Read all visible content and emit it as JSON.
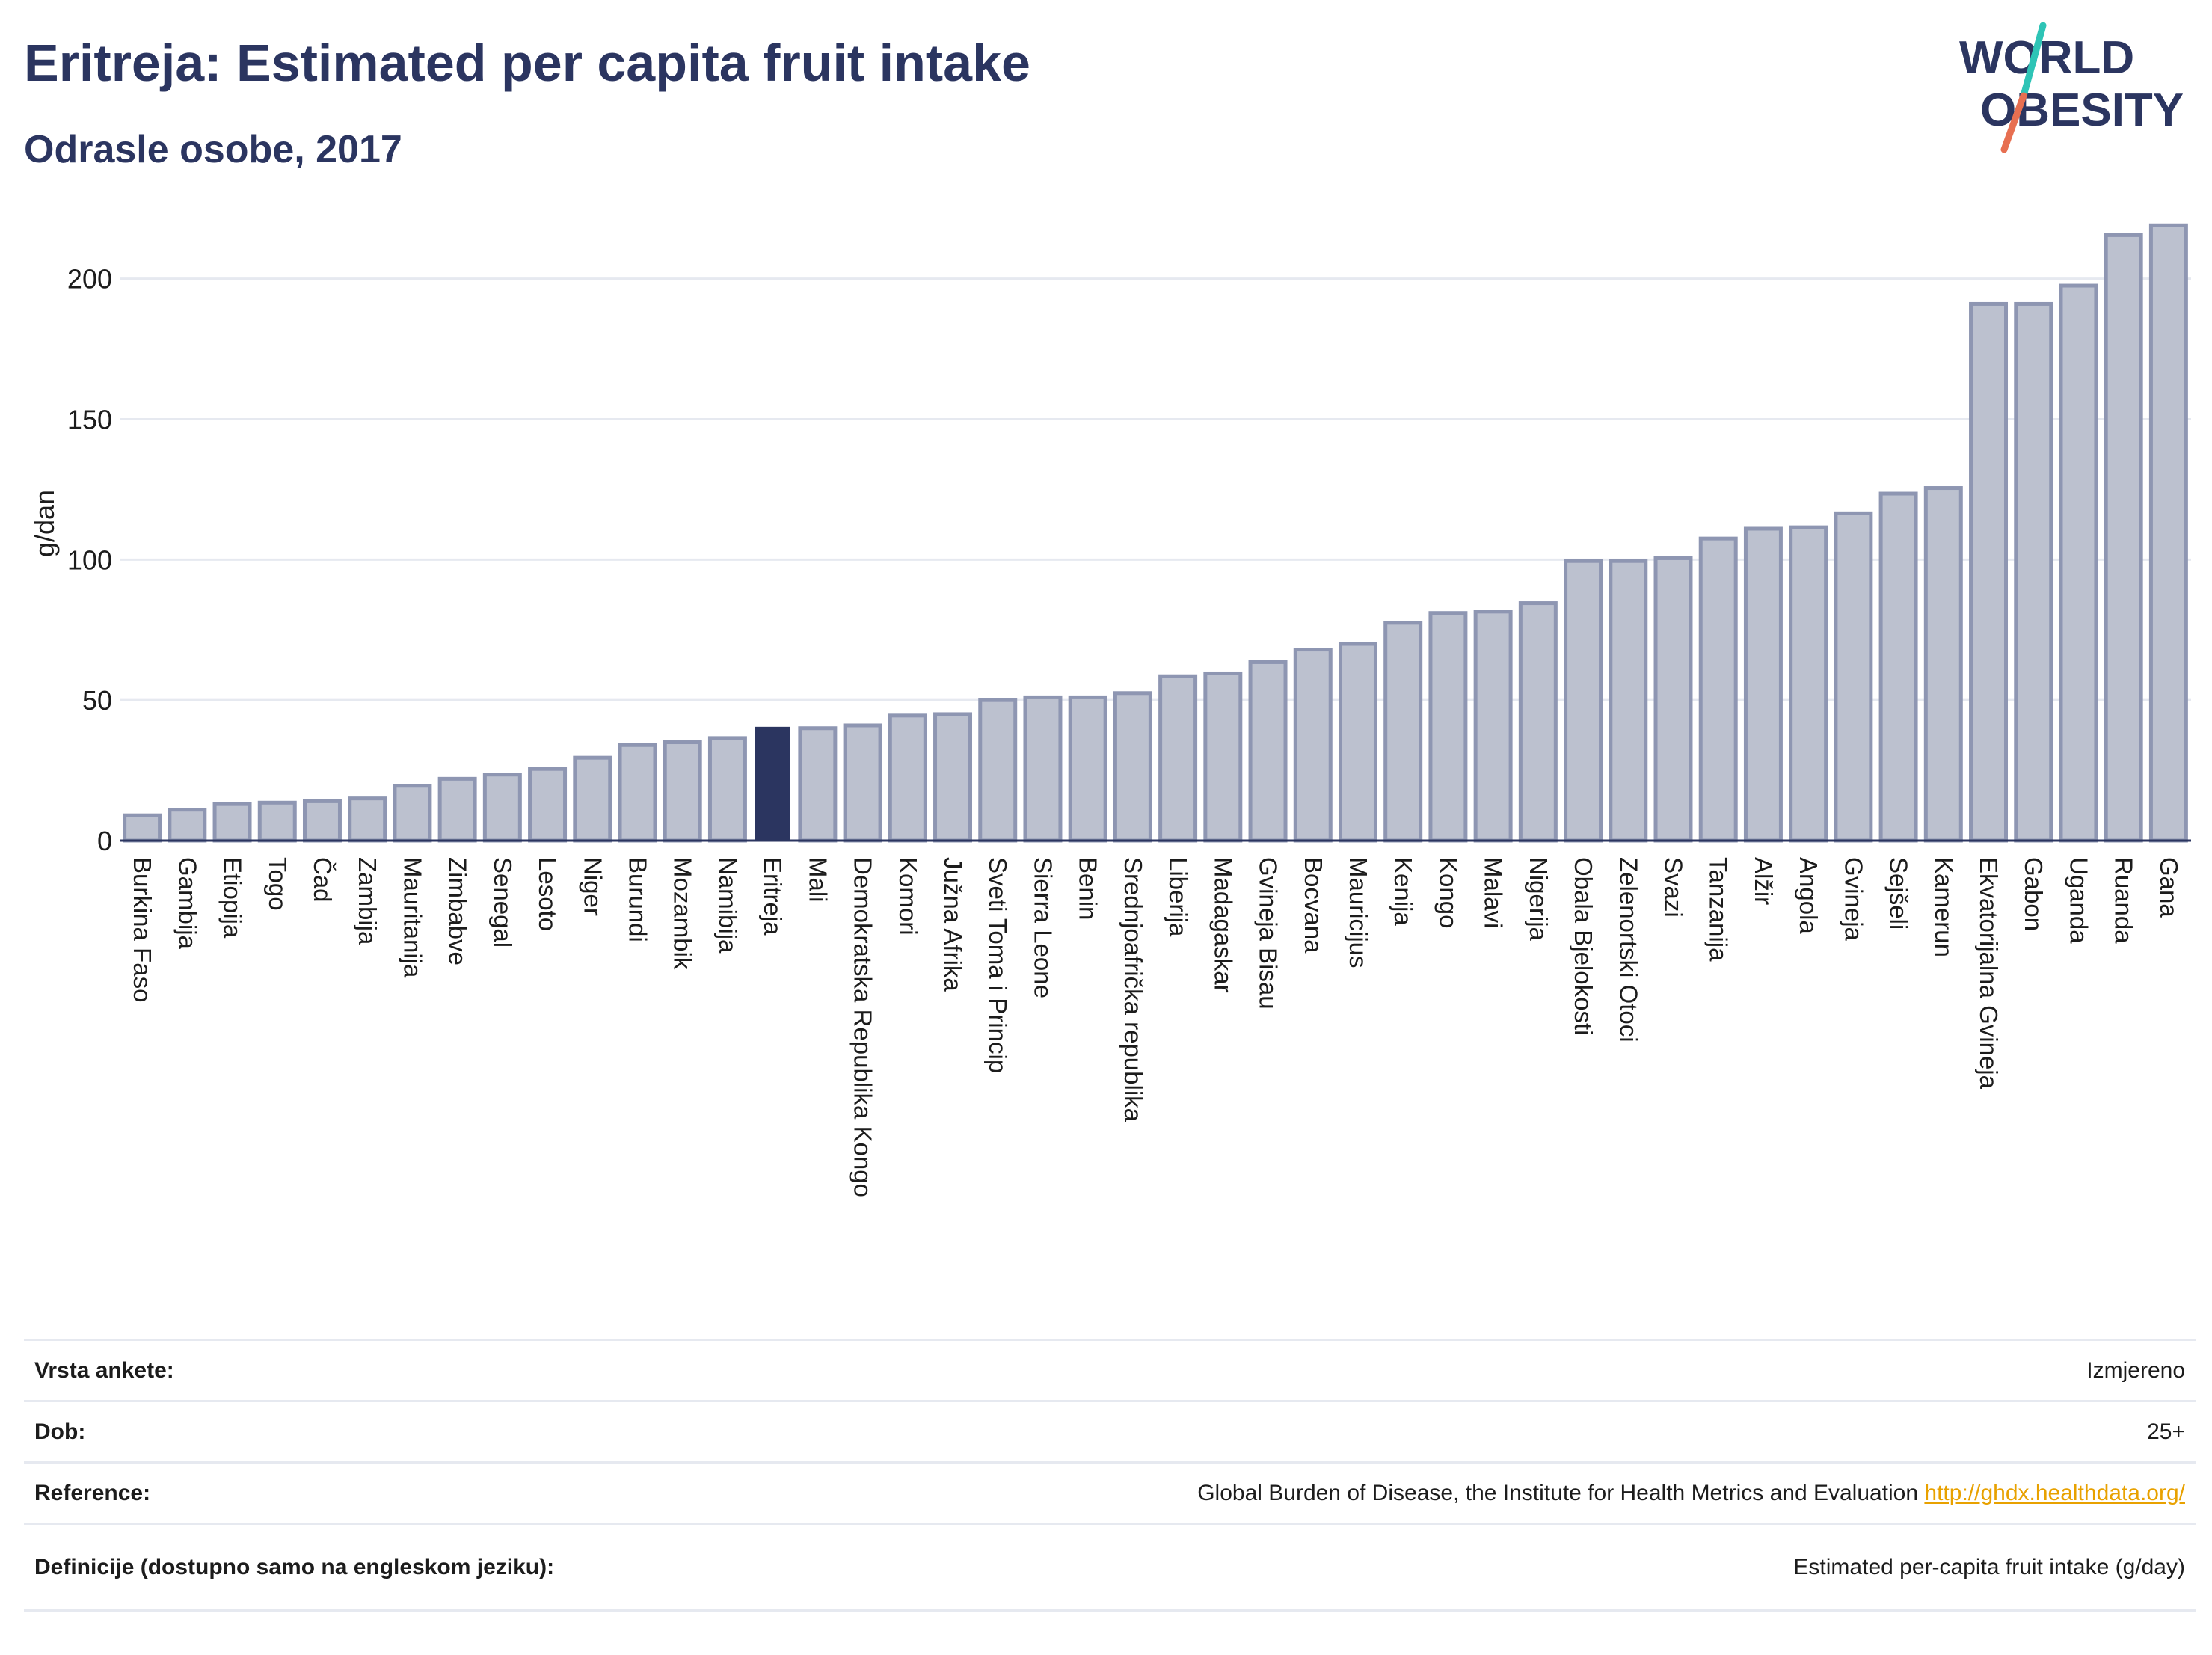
{
  "header": {
    "title": "Eritreja: Estimated per capita fruit intake",
    "subtitle": "Odrasle osobe, 2017"
  },
  "logo": {
    "line1": "WORLD",
    "line2": "OBESITY",
    "slash_colors": [
      "#2ec4b6",
      "#e76f51"
    ]
  },
  "colors": {
    "bar": "#bcc1cf",
    "bar_stroke": "#8e96b2",
    "highlight": "#2b3560",
    "grid": "#e6e9f0",
    "link": "#e8a100"
  },
  "chart_data": {
    "type": "bar",
    "title": "Eritreja: Estimated per capita fruit intake",
    "subtitle": "Odrasle osobe, 2017",
    "xlabel": "",
    "ylabel": "g/dan",
    "ylim": [
      0,
      222
    ],
    "yticks": [
      0,
      50,
      100,
      150,
      200
    ],
    "grid": true,
    "highlight": "Eritreja",
    "categories": [
      "Burkina Faso",
      "Gambija",
      "Etiopija",
      "Togo",
      "Čad",
      "Zambija",
      "Mauritanija",
      "Zimbabve",
      "Senegal",
      "Lesoto",
      "Niger",
      "Burundi",
      "Mozambik",
      "Namibija",
      "Eritreja",
      "Mali",
      "Demokratska Republika Kongo",
      "Komori",
      "Južna Afrika",
      "Sveti Toma i Princip",
      "Sierra Leone",
      "Benin",
      "Srednjoafrička republika",
      "Liberija",
      "Madagaskar",
      "Gvineja Bisau",
      "Bocvana",
      "Mauricijus",
      "Kenija",
      "Kongo",
      "Malavi",
      "Nigerija",
      "Obala Bjelokosti",
      "Zelenortski Otoci",
      "Svazi",
      "Tanzanija",
      "Alžir",
      "Angola",
      "Gvineja",
      "Sejšeli",
      "Kamerun",
      "Ekvatorijalna Gvineja",
      "Gabon",
      "Uganda",
      "Ruanda",
      "Gana"
    ],
    "values": [
      9,
      11,
      13,
      13.5,
      14,
      15,
      19.5,
      22,
      23.5,
      25.5,
      29.5,
      34,
      35,
      36.5,
      40.5,
      40,
      41,
      44.5,
      45,
      50,
      51,
      51,
      52.5,
      58.5,
      59.5,
      63.5,
      68,
      70,
      77.5,
      81,
      81.5,
      84.5,
      99.5,
      99.5,
      100.5,
      107.5,
      111,
      111.5,
      116.5,
      123.5,
      125.5,
      191,
      191,
      197.5,
      215.5,
      219
    ]
  },
  "info_table": [
    {
      "label": "Vrsta ankete:",
      "value": "Izmjereno"
    },
    {
      "label": "Dob:",
      "value": "25+"
    },
    {
      "label": "Reference:",
      "value": "Global Burden of Disease, the Institute for Health Metrics and Evaluation",
      "link": "http://ghdx.healthdata.org/"
    },
    {
      "label": "Definicije (dostupno samo na engleskom jeziku):",
      "value": "Estimated per-capita fruit intake (g/day)"
    }
  ]
}
